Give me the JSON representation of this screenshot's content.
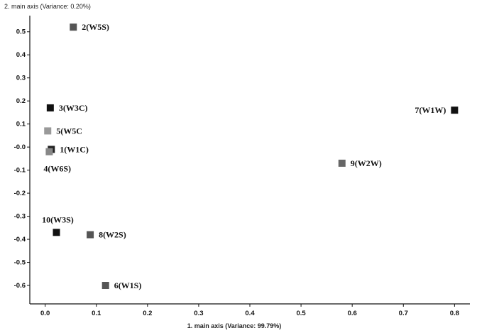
{
  "chart_data": {
    "type": "scatter",
    "xlabel": "1. main axis (Variance: 99.79%)",
    "ylabel": "2. main axis (Variance: 0.20%)",
    "xlim": [
      -0.03,
      0.83
    ],
    "ylim": [
      -0.68,
      0.57
    ],
    "x_ticks": [
      "0.0",
      "0.1",
      "0.2",
      "0.3",
      "0.4",
      "0.5",
      "0.6",
      "0.7",
      "0.8"
    ],
    "x_tick_values": [
      0.0,
      0.1,
      0.2,
      0.3,
      0.4,
      0.5,
      0.6,
      0.7,
      0.8
    ],
    "y_ticks": [
      "0.5",
      "0.4",
      "0.3",
      "0.2",
      "0.1",
      "-0.0",
      "-0.1",
      "-0.2",
      "-0.3",
      "-0.4",
      "-0.5",
      "-0.6"
    ],
    "y_tick_values": [
      0.5,
      0.4,
      0.3,
      0.2,
      0.1,
      0.0,
      -0.1,
      -0.2,
      -0.3,
      -0.4,
      -0.5,
      -0.6
    ],
    "grid": false,
    "points": [
      {
        "label": "2(W5S)",
        "x": 0.055,
        "y": 0.52,
        "color": "#555555",
        "label_side": "right"
      },
      {
        "label": "3(W3C)",
        "x": 0.01,
        "y": 0.17,
        "color": "#111111",
        "label_side": "right"
      },
      {
        "label": "5(W5C",
        "x": 0.005,
        "y": 0.07,
        "color": "#999999",
        "label_side": "right"
      },
      {
        "label": "1(W1C)",
        "x": 0.012,
        "y": -0.01,
        "color": "#222222",
        "label_side": "right"
      },
      {
        "label": "4(W6S)",
        "x": 0.008,
        "y": -0.02,
        "color": "#888888",
        "label_side": "below"
      },
      {
        "label": "7(W1W)",
        "x": 0.8,
        "y": 0.16,
        "color": "#111111",
        "label_side": "left"
      },
      {
        "label": "9(W2W)",
        "x": 0.58,
        "y": -0.07,
        "color": "#666666",
        "label_side": "right"
      },
      {
        "label": "10(W3S)",
        "x": 0.022,
        "y": -0.37,
        "color": "#111111",
        "label_side": "above"
      },
      {
        "label": "8(W2S)",
        "x": 0.088,
        "y": -0.38,
        "color": "#555555",
        "label_side": "right"
      },
      {
        "label": "6(W1S)",
        "x": 0.118,
        "y": -0.6,
        "color": "#555555",
        "label_side": "right"
      }
    ]
  }
}
